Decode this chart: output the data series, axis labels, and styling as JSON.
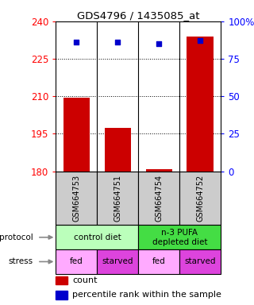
{
  "title": "GDS4796 / 1435085_at",
  "samples": [
    "GSM664753",
    "GSM664751",
    "GSM664754",
    "GSM664752"
  ],
  "bar_values": [
    209.5,
    197.5,
    180.8,
    234.0
  ],
  "percentile_values": [
    86,
    86,
    85,
    87
  ],
  "ylim_left": [
    180,
    240
  ],
  "yticks_left": [
    180,
    195,
    210,
    225,
    240
  ],
  "ylim_right": [
    0,
    100
  ],
  "yticks_right": [
    0,
    25,
    50,
    75,
    100
  ],
  "bar_color": "#cc0000",
  "dot_color": "#0000cc",
  "grid_dotted_ticks": [
    195,
    210,
    225
  ],
  "background_color": "#ffffff",
  "sample_bg_color": "#cccccc",
  "bar_width": 0.65,
  "protocol_info": [
    {
      "start": 0,
      "end": 2,
      "label": "control diet",
      "color": "#bbffbb"
    },
    {
      "start": 2,
      "end": 4,
      "label": "n-3 PUFA\ndepleted diet",
      "color": "#44dd44"
    }
  ],
  "stress_info": [
    {
      "xi": 0,
      "label": "fed",
      "color": "#ffaaff"
    },
    {
      "xi": 1,
      "label": "starved",
      "color": "#dd44dd"
    },
    {
      "xi": 2,
      "label": "fed",
      "color": "#ffaaff"
    },
    {
      "xi": 3,
      "label": "starved",
      "color": "#dd44dd"
    }
  ]
}
